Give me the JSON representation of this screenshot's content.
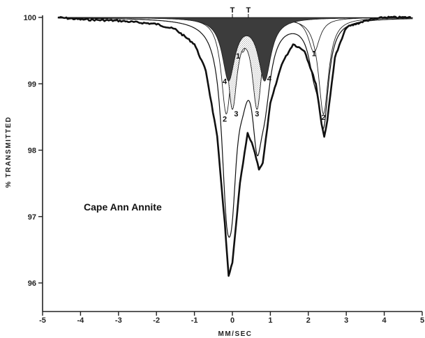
{
  "chart_data": {
    "type": "line",
    "xlabel": "MM/SEC",
    "ylabel": "% TRANSMITTED",
    "xlim": [
      -5,
      5
    ],
    "ylim": [
      95.8,
      100.1
    ],
    "xticks": [
      "-5",
      "-4",
      "-3",
      "-2",
      "-1",
      "0",
      "1",
      "2",
      "3",
      "4",
      "5"
    ],
    "yticks": [
      "96",
      "97",
      "98",
      "99",
      "100"
    ],
    "annotation": "Cape Ann Annite",
    "marker_labels": [
      "T",
      "T"
    ],
    "doublets": [
      {
        "label": "1",
        "fill": "none",
        "peaks": [
          {
            "center": 0.27,
            "depth": 0.52,
            "hwhm": 0.18
          },
          {
            "center": 2.15,
            "depth": 0.52,
            "hwhm": 0.18
          }
        ]
      },
      {
        "label": "2",
        "fill": "none",
        "peaks": [
          {
            "center": -0.16,
            "depth": 1.45,
            "hwhm": 0.16
          },
          {
            "center": 2.4,
            "depth": 1.45,
            "hwhm": 0.16
          }
        ]
      },
      {
        "label": "3",
        "fill": "stipple",
        "peaks": [
          {
            "center": 0.0,
            "depth": 1.32,
            "hwhm": 0.15
          },
          {
            "center": 0.65,
            "depth": 1.32,
            "hwhm": 0.15
          }
        ]
      },
      {
        "label": "4",
        "fill": "dark",
        "peaks": [
          {
            "center": -0.1,
            "depth": 0.92,
            "hwhm": 0.2
          },
          {
            "center": 0.85,
            "depth": 0.92,
            "hwhm": 0.2
          }
        ]
      }
    ],
    "series": [
      {
        "type": "envelope",
        "baseline": 100.0
      },
      {
        "type": "measured",
        "x": [
          -4.6,
          -4,
          -3,
          -2,
          -1.5,
          -1,
          -0.7,
          -0.4,
          -0.2,
          -0.1,
          0,
          0.2,
          0.4,
          0.55,
          0.7,
          0.8,
          1.0,
          1.3,
          1.6,
          1.9,
          2.2,
          2.35,
          2.42,
          2.5,
          2.7,
          3.0,
          3.5,
          4.0,
          4.7
        ],
        "y": [
          100,
          99.97,
          99.95,
          99.9,
          99.82,
          99.6,
          99.2,
          98.2,
          96.9,
          96.1,
          96.3,
          97.5,
          98.25,
          98.05,
          97.72,
          97.8,
          98.7,
          99.3,
          99.6,
          99.5,
          99.0,
          98.4,
          98.2,
          98.45,
          99.4,
          99.85,
          99.95,
          100,
          100
        ]
      }
    ],
    "level_labels": [
      {
        "text": "1",
        "x": 0.15,
        "y": 99.42
      },
      {
        "text": "1",
        "x": 2.15,
        "y": 99.46
      },
      {
        "text": "4",
        "x": -0.2,
        "y": 99.04
      },
      {
        "text": "4",
        "x": 0.97,
        "y": 99.08
      },
      {
        "text": "2",
        "x": -0.2,
        "y": 98.47
      },
      {
        "text": "3",
        "x": 0.1,
        "y": 98.55
      },
      {
        "text": "3",
        "x": 0.65,
        "y": 98.55
      },
      {
        "text": "2",
        "x": 2.4,
        "y": 98.5
      }
    ]
  }
}
